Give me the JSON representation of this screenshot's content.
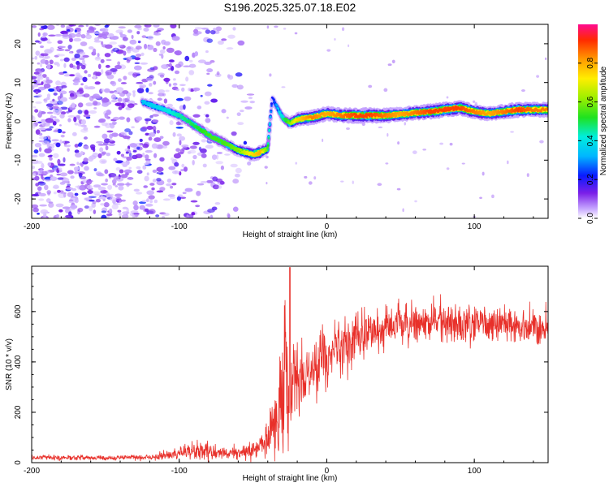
{
  "title": "S196.2025.325.07.18.E02",
  "colors": {
    "signal": "#e8302a",
    "ridge_core": "#e8302a",
    "noise": "#7a22ee"
  },
  "chart_data": [
    {
      "type": "heatmap",
      "name": "spectrogram",
      "xlabel": "Height of straight line (km)",
      "ylabel": "Frequency (Hz)",
      "xlim": [
        -200,
        150
      ],
      "ylim": [
        -25,
        25
      ],
      "xticks": [
        -200,
        -100,
        0,
        100
      ],
      "yticks": [
        -20,
        -10,
        0,
        10,
        20
      ],
      "colorbar": {
        "label": "Normalized spectral amplitude",
        "range": [
          0,
          1
        ],
        "ticks": [
          0.0,
          0.2,
          0.4,
          0.6,
          0.8
        ],
        "tick_labels": [
          "0.0",
          "0.2",
          "0.4",
          "0.6",
          "0.8"
        ],
        "colormap": "rainbow"
      },
      "ridge": {
        "x": [
          -125,
          -110,
          -100,
          -90,
          -80,
          -70,
          -60,
          -50,
          -45,
          -40,
          -37,
          -30,
          -25,
          -20,
          -10,
          0,
          10,
          20,
          30,
          40,
          50,
          60,
          70,
          80,
          90,
          100,
          110,
          120,
          130,
          140,
          150
        ],
        "frequency": [
          5,
          3,
          1.5,
          -1,
          -3.5,
          -5.5,
          -7.5,
          -8.5,
          -8,
          -7,
          6,
          1,
          -0.5,
          0.5,
          1,
          2,
          1.5,
          1.5,
          1.5,
          1.5,
          1.8,
          2.2,
          2.5,
          3,
          3.5,
          2.5,
          2,
          2.5,
          3,
          3,
          3
        ],
        "peak_amplitude": [
          0.35,
          0.4,
          0.45,
          0.5,
          0.55,
          0.55,
          0.6,
          0.75,
          0.8,
          0.55,
          0.2,
          0.45,
          0.6,
          0.75,
          0.85,
          0.8,
          0.85,
          0.9,
          0.9,
          0.85,
          0.8,
          0.85,
          0.9,
          0.9,
          0.9,
          0.85,
          0.8,
          0.85,
          0.9,
          0.85,
          0.85
        ]
      },
      "noise_region_x": [
        -200,
        -60
      ]
    },
    {
      "type": "line",
      "name": "snr",
      "xlabel": "Height of straight line (km)",
      "ylabel": "SNR (10 * v/v)",
      "xlim": [
        -200,
        150
      ],
      "ylim": [
        0,
        780
      ],
      "xticks": [
        -200,
        -100,
        0,
        100
      ],
      "yticks": [
        0,
        200,
        400,
        600
      ],
      "envelope": {
        "x": [
          -200,
          -150,
          -120,
          -100,
          -90,
          -70,
          -60,
          -50,
          -45,
          -40,
          -35,
          -30,
          -28,
          -25,
          -20,
          -10,
          0,
          10,
          20,
          30,
          40,
          50,
          60,
          80,
          100,
          120,
          140,
          150
        ],
        "mean": [
          20,
          20,
          22,
          35,
          50,
          40,
          35,
          50,
          60,
          90,
          150,
          250,
          350,
          300,
          310,
          380,
          420,
          460,
          500,
          520,
          540,
          550,
          550,
          560,
          560,
          550,
          540,
          540
        ],
        "spread": [
          10,
          10,
          12,
          20,
          40,
          30,
          25,
          35,
          40,
          70,
          150,
          200,
          350,
          200,
          150,
          130,
          120,
          110,
          100,
          90,
          80,
          80,
          80,
          80,
          80,
          80,
          80,
          80
        ]
      },
      "spike": {
        "x": -25,
        "value": 775
      }
    }
  ]
}
